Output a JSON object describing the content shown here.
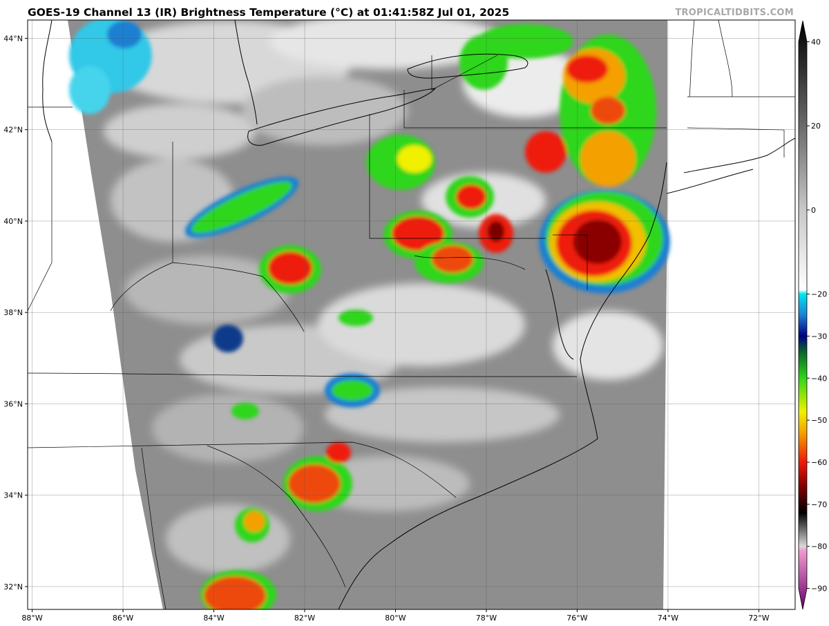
{
  "title": "GOES-19 Channel 13 (IR) Brightness Temperature (°C) at 01:41:58Z Jul 01, 2025",
  "credit": "TROPICALTIDBITS.COM",
  "map": {
    "lon_range": [
      -88.1,
      -71.2
    ],
    "lat_range": [
      31.5,
      44.4
    ],
    "lon_ticks": [
      "88°W",
      "86°W",
      "84°W",
      "82°W",
      "80°W",
      "78°W",
      "76°W",
      "74°W",
      "72°W"
    ],
    "lon_tick_values": [
      -88,
      -86,
      -84,
      -82,
      -80,
      -78,
      -76,
      -74,
      -72
    ],
    "lat_ticks": [
      "44°N",
      "42°N",
      "40°N",
      "38°N",
      "36°N",
      "34°N",
      "32°N"
    ],
    "lat_tick_values": [
      44,
      42,
      40,
      38,
      36,
      34,
      32
    ],
    "gridlines": true,
    "no_data_color": "#ffffff",
    "background_cloud_color": "#8c8c8c"
  },
  "colorbar": {
    "placement": "right",
    "tick_labels": [
      "40",
      "20",
      "0",
      "−20",
      "−30",
      "−40",
      "−50",
      "−60",
      "−70",
      "−80",
      "−90"
    ],
    "tick_values": [
      40,
      20,
      0,
      -20,
      -30,
      -40,
      -50,
      -60,
      -70,
      -80,
      -90
    ],
    "range": [
      -95,
      45
    ],
    "stops": [
      {
        "value": 45,
        "color": "#000000"
      },
      {
        "value": 20,
        "color": "#6a6a6a"
      },
      {
        "value": 0,
        "color": "#c8c8c8"
      },
      {
        "value": -19,
        "color": "#ffffff"
      },
      {
        "value": -20,
        "color": "#00e5f2"
      },
      {
        "value": -25,
        "color": "#1f7fd2"
      },
      {
        "value": -30,
        "color": "#000080"
      },
      {
        "value": -34,
        "color": "#0b6a2a"
      },
      {
        "value": -40,
        "color": "#2fd61a"
      },
      {
        "value": -48,
        "color": "#f1f000"
      },
      {
        "value": -53,
        "color": "#f4a000"
      },
      {
        "value": -60,
        "color": "#ee1a0a"
      },
      {
        "value": -66,
        "color": "#7a0000"
      },
      {
        "value": -72,
        "color": "#000000"
      },
      {
        "value": -80,
        "color": "#d9d9d9"
      },
      {
        "value": -81,
        "color": "#f09ad0"
      },
      {
        "value": -95,
        "color": "#6a006a"
      }
    ]
  }
}
